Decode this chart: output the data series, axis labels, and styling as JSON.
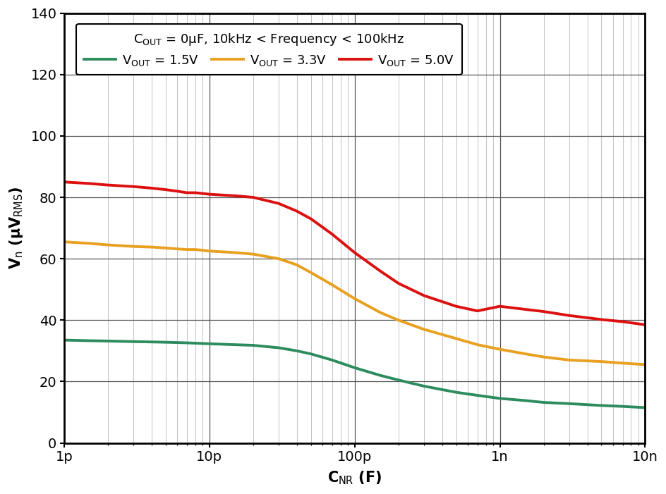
{
  "xlabel": "C$_\\mathrm{NR}$ (F)",
  "ylabel": "V$_\\mathrm{n}$ (μV$_\\mathrm{RMS}$)",
  "ylim": [
    0,
    140
  ],
  "yticks": [
    0,
    20,
    40,
    60,
    80,
    100,
    120,
    140
  ],
  "xtick_labels": [
    "1p",
    "10p",
    "100p",
    "1n",
    "10n"
  ],
  "xtick_vals": [
    1e-12,
    1e-11,
    1e-10,
    1e-09,
    1e-08
  ],
  "annotation_line1": "C$_\\mathrm{OUT}$ = 0μF, 10kHz < Frequency < 100kHz",
  "legend_entries": [
    {
      "label": "V$_\\mathrm{OUT}$ = 1.5V",
      "color": "#2d8c5e"
    },
    {
      "label": "V$_\\mathrm{OUT}$ = 3.3V",
      "color": "#e8a020"
    },
    {
      "label": "V$_\\mathrm{OUT}$ = 5.0V",
      "color": "#dd1010"
    }
  ],
  "line_width": 2.8,
  "background_color": "#ffffff",
  "grid_color_major": "#555555",
  "grid_color_minor": "#aaaaaa",
  "curve_1p5V_x": [
    1e-12,
    1.5e-12,
    2e-12,
    3e-12,
    4e-12,
    5e-12,
    6e-12,
    7e-12,
    8e-12,
    1e-11,
    1.5e-11,
    2e-11,
    3e-11,
    4e-11,
    5e-11,
    7e-11,
    1e-10,
    1.5e-10,
    2e-10,
    3e-10,
    5e-10,
    7e-10,
    1e-09,
    1.5e-09,
    2e-09,
    3e-09,
    5e-09,
    7e-09,
    1e-08
  ],
  "curve_1p5V_y": [
    33.5,
    33.3,
    33.2,
    33.0,
    32.9,
    32.8,
    32.7,
    32.6,
    32.5,
    32.3,
    32.0,
    31.8,
    31.0,
    30.0,
    29.0,
    27.0,
    24.5,
    22.0,
    20.5,
    18.5,
    16.5,
    15.5,
    14.5,
    13.8,
    13.2,
    12.8,
    12.2,
    11.9,
    11.5
  ],
  "curve_3p3V_x": [
    1e-12,
    1.5e-12,
    2e-12,
    3e-12,
    4e-12,
    5e-12,
    6e-12,
    7e-12,
    8e-12,
    1e-11,
    1.5e-11,
    2e-11,
    3e-11,
    4e-11,
    5e-11,
    7e-11,
    1e-10,
    1.5e-10,
    2e-10,
    3e-10,
    5e-10,
    7e-10,
    1e-09,
    1.5e-09,
    2e-09,
    3e-09,
    5e-09,
    7e-09,
    1e-08
  ],
  "curve_3p3V_y": [
    65.5,
    65.0,
    64.5,
    64.0,
    63.8,
    63.5,
    63.2,
    63.0,
    63.0,
    62.5,
    62.0,
    61.5,
    60.0,
    58.0,
    55.5,
    51.5,
    47.0,
    42.5,
    40.0,
    37.0,
    34.0,
    32.0,
    30.5,
    29.0,
    28.0,
    27.0,
    26.5,
    26.0,
    25.5
  ],
  "curve_5p0V_x": [
    1e-12,
    1.5e-12,
    2e-12,
    3e-12,
    4e-12,
    5e-12,
    6e-12,
    7e-12,
    8e-12,
    1e-11,
    1.5e-11,
    2e-11,
    3e-11,
    4e-11,
    5e-11,
    7e-11,
    1e-10,
    1.5e-10,
    2e-10,
    3e-10,
    5e-10,
    7e-10,
    1e-09,
    1.5e-09,
    2e-09,
    3e-09,
    5e-09,
    7e-09,
    1e-08
  ],
  "curve_5p0V_y": [
    85.0,
    84.5,
    84.0,
    83.5,
    83.0,
    82.5,
    82.0,
    81.5,
    81.5,
    81.0,
    80.5,
    80.0,
    78.0,
    75.5,
    73.0,
    68.0,
    62.0,
    56.0,
    52.0,
    48.0,
    44.5,
    43.0,
    44.5,
    43.5,
    42.8,
    41.5,
    40.2,
    39.5,
    38.5
  ]
}
